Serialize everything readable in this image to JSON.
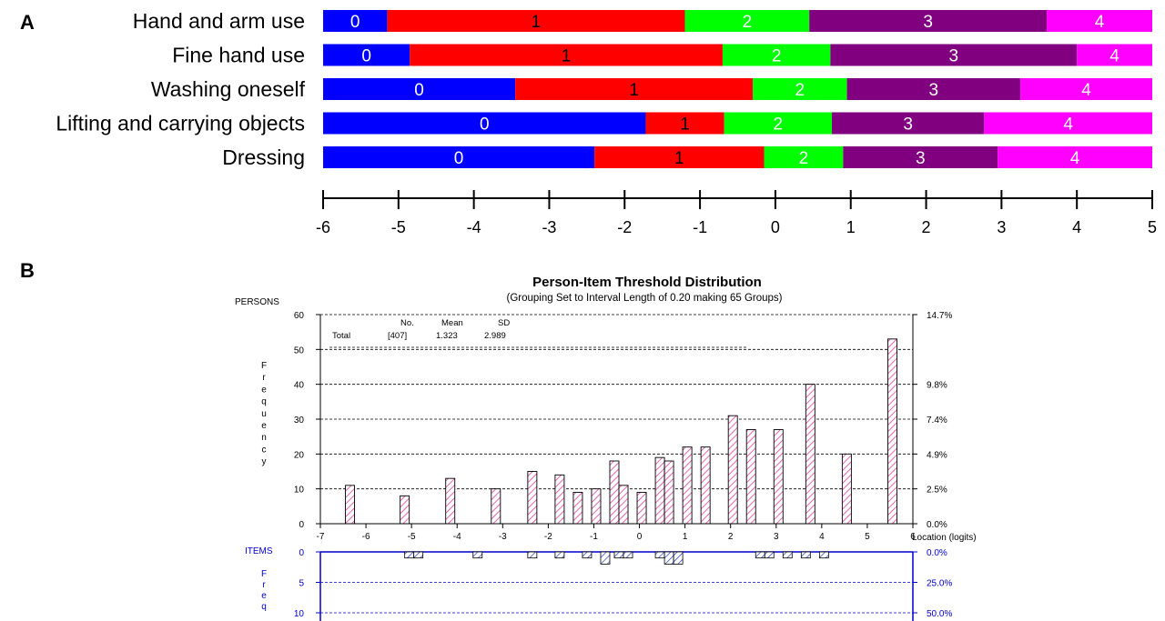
{
  "panel_a": {
    "label": "A",
    "chart_data": {
      "type": "bar",
      "orientation": "horizontal-stacked-thresholds",
      "xlim": [
        -6,
        5
      ],
      "xticks": [
        "-6",
        "-5",
        "-4",
        "-3",
        "-2",
        "-1",
        "0",
        "1",
        "2",
        "3",
        "4",
        "5"
      ],
      "category_colors": [
        "#0000ff",
        "#ff0000",
        "#00ff00",
        "#800080",
        "#ff00ff"
      ],
      "rows": [
        {
          "name": "Hand and arm use",
          "thresholds": [
            -5.15,
            -1.2,
            0.45,
            3.6
          ],
          "segment_labels": [
            "0",
            "1",
            "2",
            "3",
            "4"
          ]
        },
        {
          "name": "Fine hand use",
          "thresholds": [
            -4.85,
            -0.7,
            0.73,
            4.0
          ],
          "segment_labels": [
            "0",
            "1",
            "2",
            "3",
            "4"
          ]
        },
        {
          "name": "Washing oneself",
          "thresholds": [
            -3.45,
            -0.3,
            0.95,
            3.25
          ],
          "segment_labels": [
            "0",
            "1",
            "2",
            "3",
            "4"
          ]
        },
        {
          "name": "Lifting and carrying objects",
          "thresholds": [
            -1.72,
            -0.68,
            0.75,
            2.77
          ],
          "segment_labels": [
            "0",
            "1",
            "2",
            "3",
            "4"
          ]
        },
        {
          "name": "Dressing",
          "thresholds": [
            -2.4,
            -0.15,
            0.9,
            2.95
          ],
          "segment_labels": [
            "0",
            "1",
            "2",
            "3",
            "4"
          ]
        }
      ]
    }
  },
  "panel_b": {
    "label": "B",
    "chart_data": {
      "type": "bar",
      "title": "Person-Item Threshold Distribution",
      "subtitle": "(Grouping Set to Interval Length of  0.20  making  65  Groups)",
      "persons_label": "PERSONS",
      "ylabel_letters": [
        "F",
        "r",
        "e",
        "q",
        "u",
        "e",
        "n",
        "c",
        "y"
      ],
      "xlabel": "Location (logits)",
      "xlim": [
        -7,
        6
      ],
      "xticks": [
        "-7",
        "-6",
        "-5",
        "-4",
        "-3",
        "-2",
        "-1",
        "0",
        "1",
        "2",
        "3",
        "4",
        "5",
        "6"
      ],
      "ylim": [
        0,
        60
      ],
      "yticks": [
        "0",
        "10",
        "20",
        "30",
        "40",
        "50",
        "60"
      ],
      "right_ticks": [
        {
          "value": 0,
          "label": "0.0%"
        },
        {
          "value": 10,
          "label": "2.5%"
        },
        {
          "value": 20,
          "label": "4.9%"
        },
        {
          "value": 30,
          "label": "7.4%"
        },
        {
          "value": 40,
          "label": "9.8%"
        },
        {
          "value": 60,
          "label": "14.7%"
        }
      ],
      "stats": {
        "headers": [
          "No.",
          "Mean",
          "SD"
        ],
        "row_label": "Total",
        "values": [
          "[407]",
          "1.323",
          "2.989"
        ]
      },
      "persons": {
        "x": [
          -6.35,
          -5.15,
          -4.15,
          -3.15,
          -2.35,
          -1.75,
          -1.35,
          -0.95,
          -0.55,
          -0.35,
          0.05,
          0.45,
          0.65,
          1.05,
          1.45,
          2.05,
          2.45,
          3.05,
          3.75,
          4.55,
          5.55
        ],
        "values": [
          11,
          8,
          13,
          10,
          15,
          14,
          9,
          10,
          18,
          11,
          9,
          19,
          18,
          22,
          22,
          31,
          27,
          27,
          40,
          20,
          53
        ]
      },
      "items_panel": {
        "label": "ITEMS",
        "ylabel_letters": [
          "F",
          "r",
          "e",
          "q"
        ],
        "yticks": [
          "0",
          "5",
          "10"
        ],
        "right_ticks": [
          "0.0%",
          "25.0%",
          "50.0%"
        ],
        "x": [
          -5.05,
          -4.85,
          -3.55,
          -2.35,
          -1.75,
          -1.15,
          -0.75,
          -0.45,
          -0.25,
          0.45,
          0.65,
          0.85,
          2.65,
          2.85,
          3.25,
          3.65,
          4.05
        ],
        "values": [
          1,
          1,
          1,
          1,
          1,
          1,
          2,
          1,
          1,
          1,
          2,
          2,
          1,
          1,
          1,
          1,
          1
        ]
      }
    }
  }
}
